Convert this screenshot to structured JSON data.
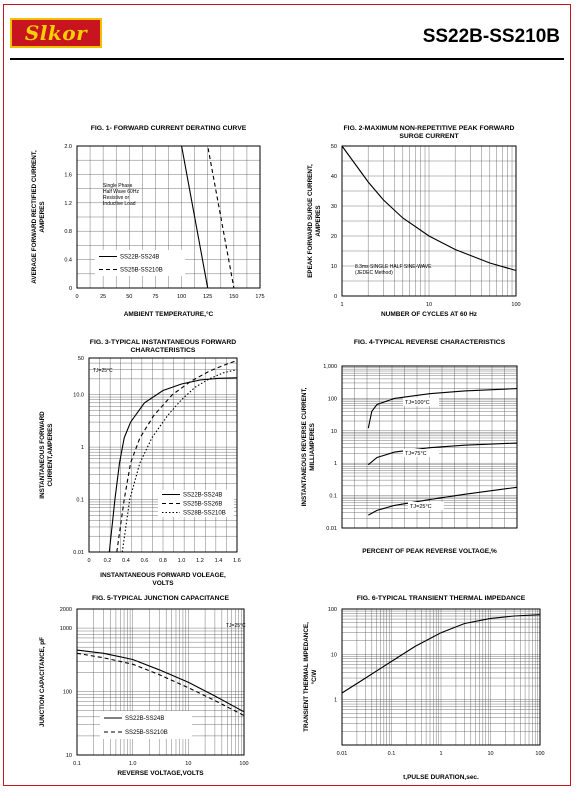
{
  "header": {
    "logo": "Slkor",
    "part_number": "SS22B-SS210B"
  },
  "chart_data": [
    {
      "id": "fig1",
      "type": "line",
      "title": "FIG. 1- FORWARD CURRENT DERATING CURVE",
      "xlabel": "AMBIENT TEMPERATURE,°C",
      "ylabel": [
        "AVERAGE FORWARD RECTIFIED CURRENT,",
        "AMPERES"
      ],
      "xlim": [
        0,
        175
      ],
      "ylim": [
        0,
        2.0
      ],
      "xticks": [
        0,
        25,
        50,
        75,
        100,
        125,
        150,
        175
      ],
      "yticks": [
        0,
        0.4,
        0.8,
        1.2,
        1.6,
        2.0
      ],
      "ytick_labels": [
        "0",
        "0.4",
        "0.8",
        "1.2",
        "1.6",
        "2.0"
      ],
      "annotation": [
        "Single Phase",
        "Half Wave 60Hz",
        "Resistive or",
        "Inductive Load"
      ],
      "series": [
        {
          "name": "SS22B-SS24B",
          "style": "solid",
          "points": [
            [
              0,
              2.0
            ],
            [
              100,
              2.0
            ],
            [
              125,
              0
            ]
          ]
        },
        {
          "name": "SS25B-SS210B",
          "style": "dashed",
          "points": [
            [
              0,
              2.0
            ],
            [
              125,
              2.0
            ],
            [
              150,
              0
            ]
          ]
        }
      ]
    },
    {
      "id": "fig2",
      "type": "line",
      "title": [
        "FIG. 2-MAXIMUM NON-REPETITIVE PEAK FORWARD",
        "SURGE CURRENT"
      ],
      "xlabel": "NUMBER OF CYCLES AT 60 Hz",
      "ylabel": [
        "EPEAK FORWARD SURGE CURRENT,",
        "AMPERES"
      ],
      "xscale": "log",
      "xlim": [
        1,
        100
      ],
      "ylim": [
        0,
        50
      ],
      "xticks": [
        1,
        10,
        100
      ],
      "yticks": [
        0,
        10,
        20,
        30,
        40,
        50
      ],
      "annotation": [
        "8.3ms SINGLE HALF SINE-WAVE",
        "(JEDEC Method)"
      ],
      "series": [
        {
          "name": "",
          "style": "solid",
          "points": [
            [
              1,
              50
            ],
            [
              1.5,
              43
            ],
            [
              2,
              38
            ],
            [
              3,
              32
            ],
            [
              5,
              26
            ],
            [
              10,
              20
            ],
            [
              20,
              15.5
            ],
            [
              50,
              11
            ],
            [
              100,
              8.5
            ]
          ]
        }
      ]
    },
    {
      "id": "fig3",
      "type": "line",
      "title": [
        "FIG. 3-TYPICAL INSTANTANEOUS FORWARD",
        "CHARACTERISTICS"
      ],
      "xlabel": [
        "INSTANTANEOUS FORWARD VOLEAGE,",
        "VOLTS"
      ],
      "ylabel": [
        "INSTANTANEOUS FORWARD",
        "CURRENT,AMPERES"
      ],
      "yscale": "log",
      "xlim": [
        0,
        1.6
      ],
      "ylim": [
        0.01,
        50
      ],
      "xticks": [
        0,
        0.2,
        0.4,
        0.6,
        0.8,
        1.0,
        1.2,
        1.4,
        1.6
      ],
      "xtick_labels": [
        "0",
        "0.2",
        "0.4",
        "0.6",
        "0.8",
        "1.0",
        "1.2",
        "1.4",
        "1.6"
      ],
      "yticks": [
        0.01,
        0.1,
        1,
        10,
        50
      ],
      "ytick_labels": [
        "0.01",
        "0.1",
        "1",
        "10.0",
        "50"
      ],
      "annotation": "TJ=25°C",
      "series": [
        {
          "name": "SS22B-SS24B",
          "style": "solid",
          "points": [
            [
              0.22,
              0.01
            ],
            [
              0.28,
              0.1
            ],
            [
              0.33,
              0.5
            ],
            [
              0.38,
              1.5
            ],
            [
              0.45,
              3
            ],
            [
              0.6,
              7
            ],
            [
              0.8,
              12
            ],
            [
              1.0,
              16
            ],
            [
              1.2,
              19
            ],
            [
              1.4,
              20.5
            ],
            [
              1.6,
              21
            ]
          ]
        },
        {
          "name": "SS25B-SS26B",
          "style": "dashed",
          "points": [
            [
              0.3,
              0.01
            ],
            [
              0.38,
              0.1
            ],
            [
              0.45,
              0.5
            ],
            [
              0.55,
              1.5
            ],
            [
              0.7,
              4
            ],
            [
              0.9,
              10
            ],
            [
              1.1,
              18
            ],
            [
              1.3,
              28
            ],
            [
              1.45,
              36
            ],
            [
              1.6,
              45
            ]
          ]
        },
        {
          "name": "SS28B-SS210B",
          "style": "dotted",
          "points": [
            [
              0.36,
              0.01
            ],
            [
              0.44,
              0.1
            ],
            [
              0.55,
              0.5
            ],
            [
              0.68,
              1.5
            ],
            [
              0.85,
              4
            ],
            [
              1.0,
              8
            ],
            [
              1.15,
              14
            ],
            [
              1.3,
              20
            ],
            [
              1.45,
              26
            ],
            [
              1.6,
              30
            ]
          ]
        }
      ]
    },
    {
      "id": "fig4",
      "type": "line",
      "title": "FIG. 4-TYPICAL REVERSE CHARACTERISTICS",
      "xlabel": "PERCENT OF PEAK REVERSE VOLTAGE,%",
      "ylabel": [
        "INSTANTANEOUS REVERSE CURRENT,",
        "MILLIAMPERES"
      ],
      "yscale": "log",
      "xlim": [
        0,
        100
      ],
      "ylim": [
        0.01,
        1000
      ],
      "yticks": [
        0.01,
        0.1,
        1,
        10,
        100,
        1000
      ],
      "ytick_labels": [
        "0.01",
        "0.1",
        "1",
        "10",
        "100",
        "1,000"
      ],
      "series": [
        {
          "name": "TJ=100°C",
          "style": "solid",
          "points": [
            [
              15,
              12
            ],
            [
              17,
              40
            ],
            [
              20,
              65
            ],
            [
              30,
              100
            ],
            [
              50,
              140
            ],
            [
              70,
              170
            ],
            [
              100,
              200
            ]
          ]
        },
        {
          "name": "TJ=75°C",
          "style": "solid",
          "points": [
            [
              15,
              0.9
            ],
            [
              20,
              1.5
            ],
            [
              30,
              2.2
            ],
            [
              50,
              3
            ],
            [
              70,
              3.6
            ],
            [
              100,
              4.2
            ]
          ]
        },
        {
          "name": "TJ=25°C",
          "style": "solid",
          "points": [
            [
              15,
              0.025
            ],
            [
              20,
              0.035
            ],
            [
              30,
              0.05
            ],
            [
              50,
              0.075
            ],
            [
              70,
              0.11
            ],
            [
              100,
              0.18
            ]
          ]
        }
      ]
    },
    {
      "id": "fig5",
      "type": "line",
      "title": "FIG. 5-TYPICAL JUNCTION CAPACITANCE",
      "xlabel": "REVERSE VOLTAGE,VOLTS",
      "ylabel": "JUNCTION CAPACITANCE, pF",
      "xscale": "log",
      "yscale": "log",
      "xlim": [
        0.1,
        100
      ],
      "ylim": [
        10,
        2000
      ],
      "xticks": [
        0.1,
        1.0,
        10,
        100
      ],
      "xtick_labels": [
        "0.1",
        "1.0",
        "10",
        "100"
      ],
      "yticks": [
        10,
        100,
        1000,
        2000
      ],
      "ytick_labels": [
        "10",
        "100",
        "1000",
        "2000"
      ],
      "annotation": "TJ=25°C",
      "series": [
        {
          "name": "SS22B-SS24B",
          "style": "solid",
          "points": [
            [
              0.1,
              450
            ],
            [
              0.3,
              400
            ],
            [
              1,
              320
            ],
            [
              3,
              220
            ],
            [
              10,
              140
            ],
            [
              30,
              85
            ],
            [
              100,
              48
            ]
          ]
        },
        {
          "name": "SS25B-SS210B",
          "style": "dashed",
          "points": [
            [
              0.1,
              400
            ],
            [
              0.3,
              340
            ],
            [
              1,
              270
            ],
            [
              3,
              185
            ],
            [
              10,
              115
            ],
            [
              30,
              72
            ],
            [
              100,
              42
            ]
          ]
        }
      ]
    },
    {
      "id": "fig6",
      "type": "line",
      "title": "FIG. 6-TYPICAL TRANSIENT THERMAL IMPEDANCE",
      "xlabel": "t,PULSE DURATION,sec.",
      "ylabel": [
        "TRANSIENT THERMAL IMPEDANCE,",
        "°C/W"
      ],
      "xscale": "log",
      "yscale": "log",
      "xlim": [
        0.01,
        100
      ],
      "ylim": [
        0.1,
        100
      ],
      "xticks": [
        0.01,
        0.1,
        1,
        10,
        100
      ],
      "xtick_labels": [
        "0.01",
        "0.1",
        "1",
        "10",
        "100"
      ],
      "yticks": [
        1,
        10,
        100
      ],
      "ytick_labels": [
        "1",
        "10",
        "100"
      ],
      "series": [
        {
          "name": "",
          "style": "solid",
          "points": [
            [
              0.01,
              1.4
            ],
            [
              0.03,
              3
            ],
            [
              0.1,
              7
            ],
            [
              0.3,
              15
            ],
            [
              1,
              30
            ],
            [
              3,
              48
            ],
            [
              10,
              62
            ],
            [
              30,
              70
            ],
            [
              100,
              75
            ]
          ]
        }
      ]
    }
  ]
}
